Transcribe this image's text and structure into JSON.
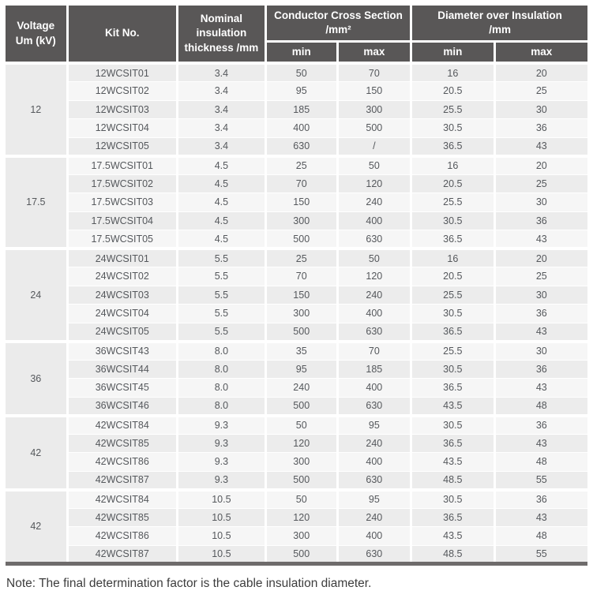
{
  "colors": {
    "header_bg": "#595757",
    "header_text": "#ffffff",
    "row_gray": "#ececec",
    "row_light": "#f6f6f6",
    "voltage_cell_bg": "#ebebeb",
    "bottom_border": "#6e6b6b",
    "body_text": "#55585c",
    "note_text": "#3d3d3d"
  },
  "table": {
    "header": {
      "voltage": "Voltage\nUm (kV)",
      "kit_no": "Kit No.",
      "nominal": "Nominal insulation\nthickness /mm",
      "ccs": "Conductor Cross Section\n/mm²",
      "doi": "Diameter over Insulation\n/mm",
      "min": "min",
      "max": "max"
    },
    "groups": [
      {
        "voltage": "12",
        "rows": [
          {
            "kit": "12WCSIT01",
            "thickness": "3.4",
            "ccs_min": "50",
            "ccs_max": "70",
            "doi_min": "16",
            "doi_max": "20"
          },
          {
            "kit": "12WCSIT02",
            "thickness": "3.4",
            "ccs_min": "95",
            "ccs_max": "150",
            "doi_min": "20.5",
            "doi_max": "25"
          },
          {
            "kit": "12WCSIT03",
            "thickness": "3.4",
            "ccs_min": "185",
            "ccs_max": "300",
            "doi_min": "25.5",
            "doi_max": "30"
          },
          {
            "kit": "12WCSIT04",
            "thickness": "3.4",
            "ccs_min": "400",
            "ccs_max": "500",
            "doi_min": "30.5",
            "doi_max": "36"
          },
          {
            "kit": "12WCSIT05",
            "thickness": "3.4",
            "ccs_min": "630",
            "ccs_max": "/",
            "doi_min": "36.5",
            "doi_max": "43"
          }
        ]
      },
      {
        "voltage": "17.5",
        "rows": [
          {
            "kit": "17.5WCSIT01",
            "thickness": "4.5",
            "ccs_min": "25",
            "ccs_max": "50",
            "doi_min": "16",
            "doi_max": "20"
          },
          {
            "kit": "17.5WCSIT02",
            "thickness": "4.5",
            "ccs_min": "70",
            "ccs_max": "120",
            "doi_min": "20.5",
            "doi_max": "25"
          },
          {
            "kit": "17.5WCSIT03",
            "thickness": "4.5",
            "ccs_min": "150",
            "ccs_max": "240",
            "doi_min": "25.5",
            "doi_max": "30"
          },
          {
            "kit": "17.5WCSIT04",
            "thickness": "4.5",
            "ccs_min": "300",
            "ccs_max": "400",
            "doi_min": "30.5",
            "doi_max": "36"
          },
          {
            "kit": "17.5WCSIT05",
            "thickness": "4.5",
            "ccs_min": "500",
            "ccs_max": "630",
            "doi_min": "36.5",
            "doi_max": "43"
          }
        ]
      },
      {
        "voltage": "24",
        "rows": [
          {
            "kit": "24WCSIT01",
            "thickness": "5.5",
            "ccs_min": "25",
            "ccs_max": "50",
            "doi_min": "16",
            "doi_max": "20"
          },
          {
            "kit": "24WCSIT02",
            "thickness": "5.5",
            "ccs_min": "70",
            "ccs_max": "120",
            "doi_min": "20.5",
            "doi_max": "25"
          },
          {
            "kit": "24WCSIT03",
            "thickness": "5.5",
            "ccs_min": "150",
            "ccs_max": "240",
            "doi_min": "25.5",
            "doi_max": "30"
          },
          {
            "kit": "24WCSIT04",
            "thickness": "5.5",
            "ccs_min": "300",
            "ccs_max": "400",
            "doi_min": "30.5",
            "doi_max": "36"
          },
          {
            "kit": "24WCSIT05",
            "thickness": "5.5",
            "ccs_min": "500",
            "ccs_max": "630",
            "doi_min": "36.5",
            "doi_max": "43"
          }
        ]
      },
      {
        "voltage": "36",
        "rows": [
          {
            "kit": "36WCSIT43",
            "thickness": "8.0",
            "ccs_min": "35",
            "ccs_max": "70",
            "doi_min": "25.5",
            "doi_max": "30"
          },
          {
            "kit": "36WCSIT44",
            "thickness": "8.0",
            "ccs_min": "95",
            "ccs_max": "185",
            "doi_min": "30.5",
            "doi_max": "36"
          },
          {
            "kit": "36WCSIT45",
            "thickness": "8.0",
            "ccs_min": "240",
            "ccs_max": "400",
            "doi_min": "36.5",
            "doi_max": "43"
          },
          {
            "kit": "36WCSIT46",
            "thickness": "8.0",
            "ccs_min": "500",
            "ccs_max": "630",
            "doi_min": "43.5",
            "doi_max": "48"
          }
        ]
      },
      {
        "voltage": "42",
        "rows": [
          {
            "kit": "42WCSIT84",
            "thickness": "9.3",
            "ccs_min": "50",
            "ccs_max": "95",
            "doi_min": "30.5",
            "doi_max": "36"
          },
          {
            "kit": "42WCSIT85",
            "thickness": "9.3",
            "ccs_min": "120",
            "ccs_max": "240",
            "doi_min": "36.5",
            "doi_max": "43"
          },
          {
            "kit": "42WCSIT86",
            "thickness": "9.3",
            "ccs_min": "300",
            "ccs_max": "400",
            "doi_min": "43.5",
            "doi_max": "48"
          },
          {
            "kit": "42WCSIT87",
            "thickness": "9.3",
            "ccs_min": "500",
            "ccs_max": "630",
            "doi_min": "48.5",
            "doi_max": "55"
          }
        ]
      },
      {
        "voltage": "42",
        "rows": [
          {
            "kit": "42WCSIT84",
            "thickness": "10.5",
            "ccs_min": "50",
            "ccs_max": "95",
            "doi_min": "30.5",
            "doi_max": "36"
          },
          {
            "kit": "42WCSIT85",
            "thickness": "10.5",
            "ccs_min": "120",
            "ccs_max": "240",
            "doi_min": "36.5",
            "doi_max": "43"
          },
          {
            "kit": "42WCSIT86",
            "thickness": "10.5",
            "ccs_min": "300",
            "ccs_max": "400",
            "doi_min": "43.5",
            "doi_max": "48"
          },
          {
            "kit": "42WCSIT87",
            "thickness": "10.5",
            "ccs_min": "500",
            "ccs_max": "630",
            "doi_min": "48.5",
            "doi_max": "55"
          }
        ]
      }
    ]
  },
  "note": "Note: The final determination factor is the cable insulation diameter."
}
